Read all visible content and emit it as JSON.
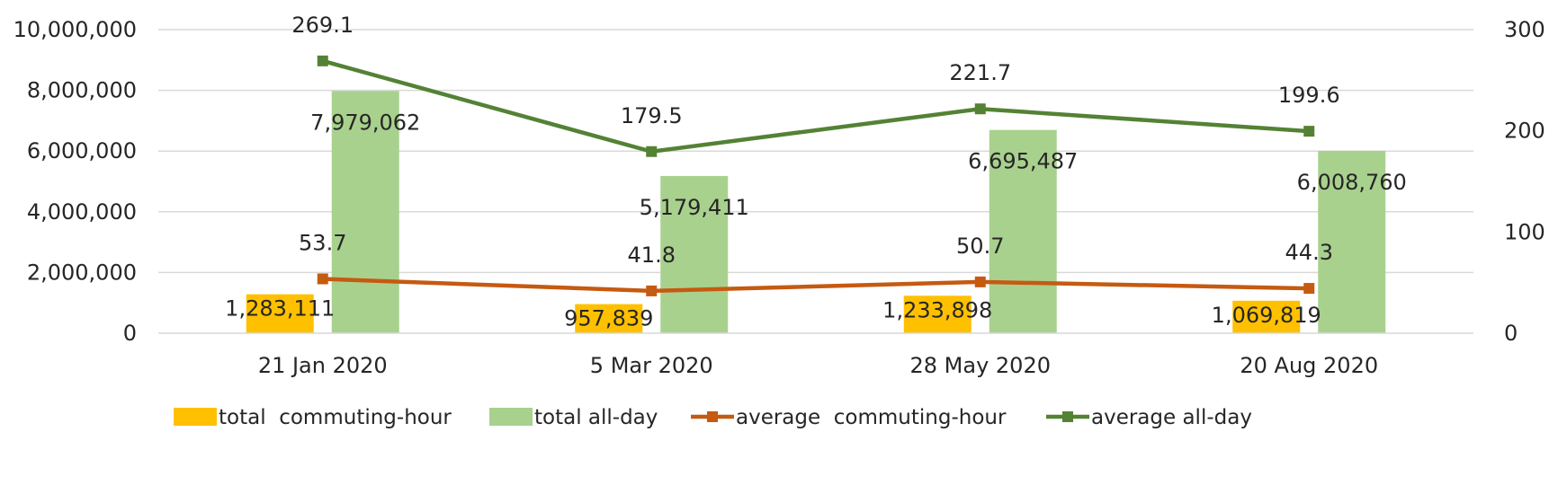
{
  "chart_data": {
    "type": "bar",
    "categories": [
      "21 Jan 2020",
      "5 Mar 2020",
      "28 May 2020",
      "20 Aug 2020"
    ],
    "series": [
      {
        "name": "total  commuting-hour",
        "kind": "bar",
        "axis": "left",
        "color": "#FFC000",
        "values": [
          1283111,
          957839,
          1233898,
          1069819
        ],
        "labels": [
          "1,283,111",
          "957,839",
          "1,233,898",
          "1,069,819"
        ]
      },
      {
        "name": "total all-day",
        "kind": "bar",
        "axis": "left",
        "color": "#A9D18E",
        "values": [
          7979062,
          5179411,
          6695487,
          6008760
        ],
        "labels": [
          "7,979,062",
          "5,179,411",
          "6,695,487",
          "6,008,760"
        ]
      },
      {
        "name": "average  commuting-hour",
        "kind": "line",
        "axis": "right",
        "color": "#C55A11",
        "values": [
          53.7,
          41.8,
          50.7,
          44.3
        ],
        "labels": [
          "53.7",
          "41.8",
          "50.7",
          "44.3"
        ]
      },
      {
        "name": "average all-day",
        "kind": "line",
        "axis": "right",
        "color": "#548235",
        "values": [
          269.1,
          179.5,
          221.7,
          199.6
        ],
        "labels": [
          "269.1",
          "179.5",
          "221.7",
          "199.6"
        ]
      }
    ],
    "y_left": {
      "ylim": [
        0,
        10000000
      ],
      "ticks": [
        0,
        2000000,
        4000000,
        6000000,
        8000000,
        10000000
      ],
      "tick_labels": [
        "0",
        "2,000,000",
        "4,000,000",
        "6,000,000",
        "8,000,000",
        "10,000,000"
      ]
    },
    "y_right": {
      "ylim": [
        0,
        300
      ],
      "ticks": [
        0,
        100,
        200,
        300
      ],
      "tick_labels": [
        "0",
        "100",
        "200",
        "300"
      ]
    },
    "grid": true,
    "legend_position": "bottom",
    "colors": {
      "gridline": "#D9D9D9",
      "text": "#262626"
    }
  }
}
